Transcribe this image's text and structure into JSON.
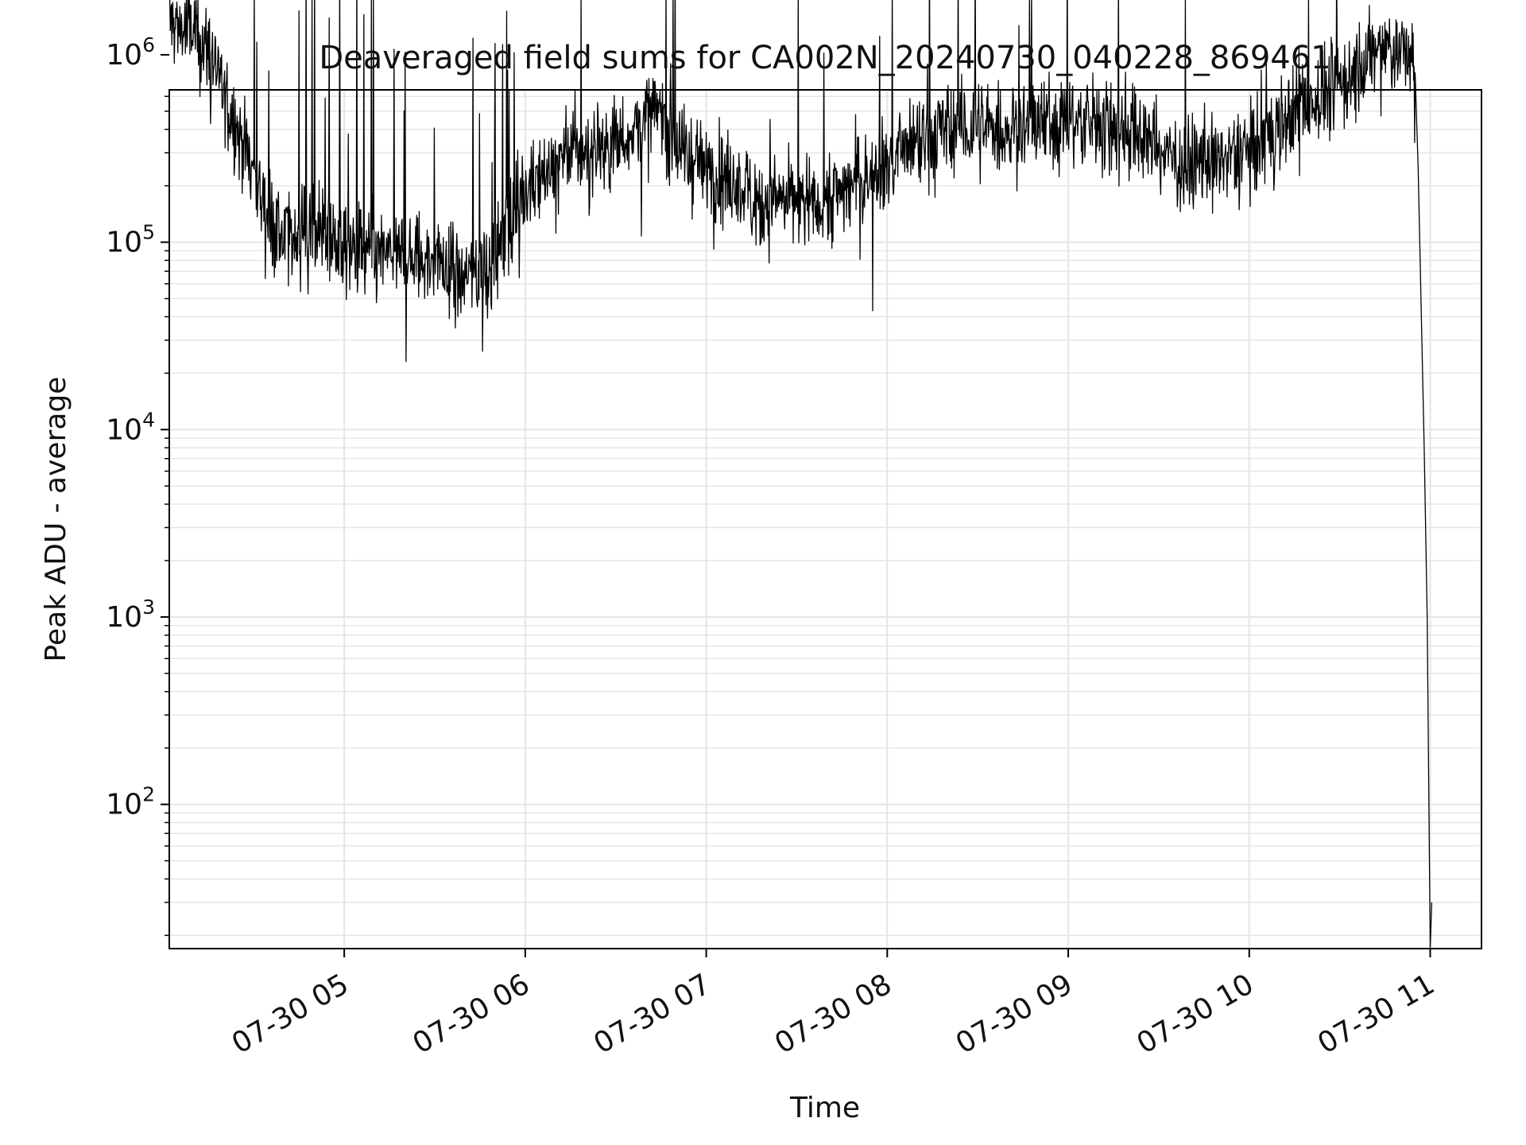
{
  "chart_data": {
    "type": "line",
    "title": "Deaveraged field sums for CA002N_20240730_040228_869461",
    "xlabel": "Time",
    "ylabel": "Peak ADU - average",
    "x_start": "2024-07-30 04:02",
    "x_end": "2024-07-30 11:00",
    "xlim": [
      "2024-07-30 04:02",
      "2024-07-30 11:17"
    ],
    "ylim": [
      17,
      650000
    ],
    "yscale": "log",
    "grid": true,
    "grid_color": "#e5e5e5",
    "line_color": "#000000",
    "x_ticks": [
      {
        "label": "07-30 05",
        "value": "2024-07-30 05:00"
      },
      {
        "label": "07-30 06",
        "value": "2024-07-30 06:00"
      },
      {
        "label": "07-30 07",
        "value": "2024-07-30 07:00"
      },
      {
        "label": "07-30 08",
        "value": "2024-07-30 08:00"
      },
      {
        "label": "07-30 09",
        "value": "2024-07-30 09:00"
      },
      {
        "label": "07-30 10",
        "value": "2024-07-30 10:00"
      },
      {
        "label": "07-30 11",
        "value": "2024-07-30 11:00"
      }
    ],
    "y_ticks": [
      {
        "base": "10",
        "exp": "2",
        "value": 100
      },
      {
        "base": "10",
        "exp": "3",
        "value": 1000
      },
      {
        "base": "10",
        "exp": "4",
        "value": 10000
      },
      {
        "base": "10",
        "exp": "5",
        "value": 100000
      },
      {
        "base": "10",
        "exp": "6",
        "value": 1000000
      }
    ],
    "series": [
      {
        "trend": [
          [
            "2024-07-30 04:02",
            1500000
          ],
          [
            "2024-07-30 04:10",
            1300000
          ],
          [
            "2024-07-30 04:16",
            1000000
          ],
          [
            "2024-07-30 04:22",
            500000
          ],
          [
            "2024-07-30 04:28",
            300000
          ],
          [
            "2024-07-30 04:34",
            150000
          ],
          [
            "2024-07-30 04:40",
            100000
          ],
          [
            "2024-07-30 04:50",
            130000
          ],
          [
            "2024-07-30 05:00",
            90000
          ],
          [
            "2024-07-30 05:15",
            85000
          ],
          [
            "2024-07-30 05:30",
            80000
          ],
          [
            "2024-07-30 05:40",
            65000
          ],
          [
            "2024-07-30 05:50",
            80000
          ],
          [
            "2024-07-30 06:00",
            200000
          ],
          [
            "2024-07-30 06:15",
            300000
          ],
          [
            "2024-07-30 06:30",
            350000
          ],
          [
            "2024-07-30 06:45",
            500000
          ],
          [
            "2024-07-30 06:52",
            300000
          ],
          [
            "2024-07-30 07:00",
            250000
          ],
          [
            "2024-07-30 07:20",
            160000
          ],
          [
            "2024-07-30 07:40",
            170000
          ],
          [
            "2024-07-30 08:00",
            260000
          ],
          [
            "2024-07-30 08:20",
            400000
          ],
          [
            "2024-07-30 08:40",
            400000
          ],
          [
            "2024-07-30 09:00",
            450000
          ],
          [
            "2024-07-30 09:20",
            400000
          ],
          [
            "2024-07-30 09:40",
            250000
          ],
          [
            "2024-07-30 10:00",
            300000
          ],
          [
            "2024-07-30 10:15",
            500000
          ],
          [
            "2024-07-30 10:30",
            700000
          ],
          [
            "2024-07-30 10:45",
            1100000
          ],
          [
            "2024-07-30 10:54",
            1000000
          ],
          [
            "2024-07-30 10:56",
            250000
          ],
          [
            "2024-07-30 10:58",
            8000
          ],
          [
            "2024-07-30 10:59",
            1000
          ],
          [
            "2024-07-30 11:00",
            17
          ]
        ]
      }
    ]
  }
}
